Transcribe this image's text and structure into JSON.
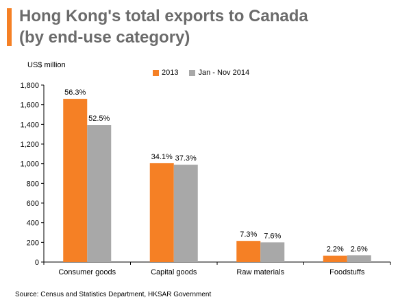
{
  "title": "Hong Kong's total exports to Canada (by end-use category)",
  "title_lines": [
    "Hong Kong's total exports to Canada",
    "(by end-use category)"
  ],
  "ylabel": "US$ million",
  "source": "Source: Census and Statistics Department, HKSAR Government",
  "colors": {
    "accent": "#f58025",
    "series_2013": "#f58025",
    "series_2014": "#a8a8a8",
    "title": "#6b6b6b"
  },
  "chart_data": {
    "type": "bar",
    "title": "Hong Kong's total exports to Canada (by end-use category)",
    "xlabel": "",
    "ylabel": "US$ million",
    "categories": [
      "Consumer goods",
      "Capital goods",
      "Raw materials",
      "Foodstuffs"
    ],
    "series": [
      {
        "name": "2013",
        "values": [
          1660,
          1005,
          215,
          65
        ],
        "labels": [
          "56.3%",
          "34.1%",
          "7.3%",
          "2.2%"
        ],
        "color": "#f58025"
      },
      {
        "name": "Jan - Nov 2014",
        "values": [
          1395,
          990,
          200,
          68
        ],
        "labels": [
          "52.5%",
          "37.3%",
          "7.6%",
          "2.6%"
        ],
        "color": "#a8a8a8"
      }
    ],
    "ylim": [
      0,
      1800
    ],
    "yticks": [
      0,
      200,
      400,
      600,
      800,
      1000,
      1200,
      1400,
      1600,
      1800
    ],
    "ytick_labels": [
      "0",
      "200",
      "400",
      "600",
      "800",
      "1,000",
      "1,200",
      "1,400",
      "1,600",
      "1,800"
    ],
    "grid": false,
    "legend_position": "top"
  }
}
